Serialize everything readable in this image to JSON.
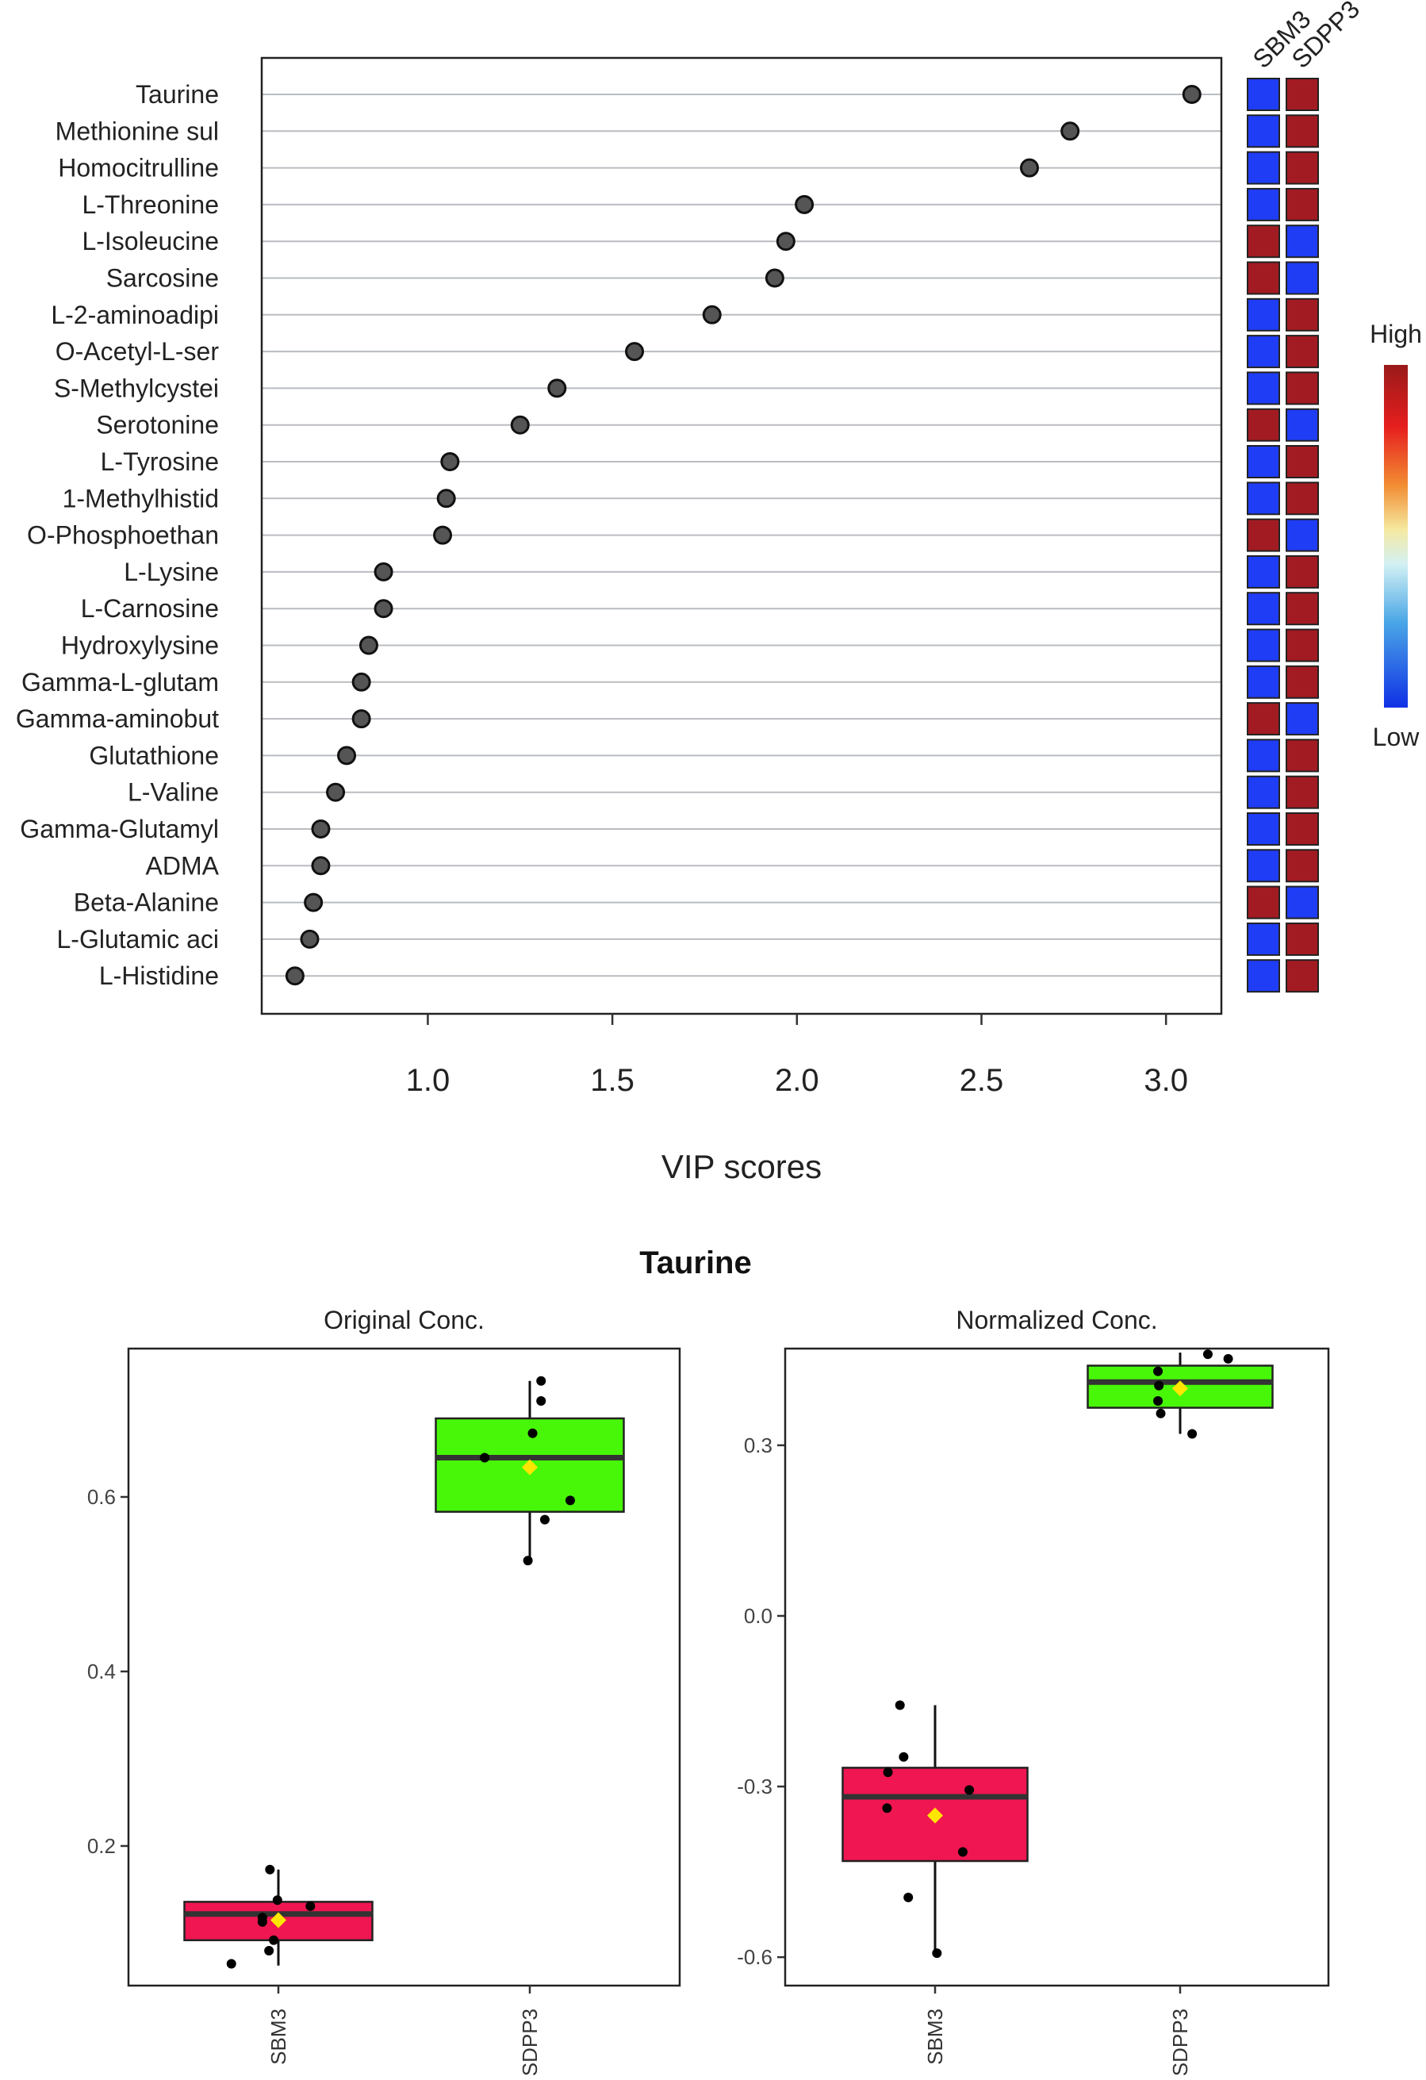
{
  "colors": {
    "high": "#a31b22",
    "low": "#1f3df5",
    "box_SBM3": "#ef1651",
    "box_SDPP3": "#48f708",
    "mean_marker": "#ffe600",
    "point": "#555555"
  },
  "chart_data": [
    {
      "type": "scatter",
      "subtype": "vip-dot-plot",
      "xlabel": "VIP scores",
      "xlim": [
        0.55,
        3.15
      ],
      "xticks": [
        1.0,
        1.5,
        2.0,
        2.5,
        3.0
      ],
      "xtick_labels": [
        "1.0",
        "1.5",
        "2.0",
        "2.5",
        "3.0"
      ],
      "categories": [
        "Taurine",
        "Methionine sul",
        "Homocitrulline",
        "L-Threonine",
        "L-Isoleucine",
        "Sarcosine",
        "L-2-aminoadipi",
        "O-Acetyl-L-ser",
        "S-Methylcystei",
        "Serotonine",
        "L-Tyrosine",
        "1-Methylhistid",
        "O-Phosphoethan",
        "L-Lysine",
        "L-Carnosine",
        "Hydroxylysine",
        "Gamma-L-glutam",
        "Gamma-aminobut",
        "Glutathione",
        "L-Valine",
        "Gamma-Glutamyl",
        "ADMA",
        "Beta-Alanine",
        "L-Glutamic aci",
        "L-Histidine"
      ],
      "values": [
        3.07,
        2.74,
        2.63,
        2.02,
        1.97,
        1.94,
        1.77,
        1.56,
        1.35,
        1.25,
        1.06,
        1.05,
        1.04,
        0.88,
        0.88,
        0.84,
        0.82,
        0.82,
        0.78,
        0.75,
        0.71,
        0.71,
        0.69,
        0.68,
        0.64
      ],
      "heatmap": {
        "columns": [
          "SBM3",
          "SDPP3"
        ],
        "levels": [
          [
            "low",
            "high"
          ],
          [
            "low",
            "high"
          ],
          [
            "low",
            "high"
          ],
          [
            "low",
            "high"
          ],
          [
            "high",
            "low"
          ],
          [
            "high",
            "low"
          ],
          [
            "low",
            "high"
          ],
          [
            "low",
            "high"
          ],
          [
            "low",
            "high"
          ],
          [
            "high",
            "low"
          ],
          [
            "low",
            "high"
          ],
          [
            "low",
            "high"
          ],
          [
            "high",
            "low"
          ],
          [
            "low",
            "high"
          ],
          [
            "low",
            "high"
          ],
          [
            "low",
            "high"
          ],
          [
            "low",
            "high"
          ],
          [
            "high",
            "low"
          ],
          [
            "low",
            "high"
          ],
          [
            "low",
            "high"
          ],
          [
            "low",
            "high"
          ],
          [
            "low",
            "high"
          ],
          [
            "high",
            "low"
          ],
          [
            "low",
            "high"
          ],
          [
            "low",
            "high"
          ]
        ]
      },
      "legend": {
        "high_label": "High",
        "low_label": "Low",
        "position": "right"
      }
    },
    {
      "type": "box",
      "suptitle": "Taurine",
      "title": "Original Conc.",
      "categories": [
        "SBM3",
        "SDPP3"
      ],
      "ylim": [
        0.04,
        0.77
      ],
      "yticks": [
        0.2,
        0.4,
        0.6
      ],
      "ytick_labels": [
        "0.2",
        "0.4",
        "0.6"
      ],
      "boxes": [
        {
          "q1": 0.092,
          "median": 0.122,
          "q3": 0.136,
          "whisker_low": 0.063,
          "whisker_high": 0.173,
          "mean": 0.115
        },
        {
          "q1": 0.583,
          "median": 0.645,
          "q3": 0.69,
          "whisker_low": 0.527,
          "whisker_high": 0.733,
          "mean": 0.634
        }
      ],
      "points": [
        {
          "cat": 0,
          "y": 0.065,
          "jitter": -0.5
        },
        {
          "cat": 0,
          "y": 0.08,
          "jitter": -0.1
        },
        {
          "cat": 0,
          "y": 0.092,
          "jitter": -0.05
        },
        {
          "cat": 0,
          "y": 0.113,
          "jitter": -0.17
        },
        {
          "cat": 0,
          "y": 0.118,
          "jitter": -0.17
        },
        {
          "cat": 0,
          "y": 0.138,
          "jitter": -0.01
        },
        {
          "cat": 0,
          "y": 0.131,
          "jitter": 0.34
        },
        {
          "cat": 0,
          "y": 0.173,
          "jitter": -0.09
        },
        {
          "cat": 1,
          "y": 0.527,
          "jitter": -0.02
        },
        {
          "cat": 1,
          "y": 0.574,
          "jitter": 0.16
        },
        {
          "cat": 1,
          "y": 0.596,
          "jitter": 0.43
        },
        {
          "cat": 1,
          "y": 0.645,
          "jitter": -0.48
        },
        {
          "cat": 1,
          "y": 0.673,
          "jitter": 0.03
        },
        {
          "cat": 1,
          "y": 0.71,
          "jitter": 0.12
        },
        {
          "cat": 1,
          "y": 0.733,
          "jitter": 0.12
        }
      ]
    },
    {
      "type": "box",
      "title": "Normalized Conc.",
      "categories": [
        "SBM3",
        "SDPP3"
      ],
      "ylim": [
        -0.65,
        0.47
      ],
      "yticks": [
        -0.6,
        -0.3,
        0.0,
        0.3
      ],
      "ytick_labels": [
        "-0.6",
        "-0.3",
        "0.0",
        "0.3"
      ],
      "boxes": [
        {
          "q1": -0.431,
          "median": -0.318,
          "q3": -0.267,
          "whisker_low": -0.593,
          "whisker_high": -0.157,
          "mean": -0.351
        },
        {
          "q1": 0.366,
          "median": 0.411,
          "q3": 0.44,
          "whisker_low": 0.32,
          "whisker_high": 0.463,
          "mean": 0.4
        }
      ],
      "points": [
        {
          "cat": 0,
          "y": -0.157,
          "jitter": -0.38
        },
        {
          "cat": 0,
          "y": -0.248,
          "jitter": -0.34
        },
        {
          "cat": 0,
          "y": -0.275,
          "jitter": -0.51
        },
        {
          "cat": 0,
          "y": -0.306,
          "jitter": 0.37
        },
        {
          "cat": 0,
          "y": -0.338,
          "jitter": -0.52
        },
        {
          "cat": 0,
          "y": -0.415,
          "jitter": 0.3
        },
        {
          "cat": 0,
          "y": -0.495,
          "jitter": -0.29
        },
        {
          "cat": 0,
          "y": -0.593,
          "jitter": 0.02
        },
        {
          "cat": 1,
          "y": 0.32,
          "jitter": 0.13
        },
        {
          "cat": 1,
          "y": 0.356,
          "jitter": -0.21
        },
        {
          "cat": 1,
          "y": 0.378,
          "jitter": -0.24
        },
        {
          "cat": 1,
          "y": 0.405,
          "jitter": -0.23
        },
        {
          "cat": 1,
          "y": 0.43,
          "jitter": -0.24
        },
        {
          "cat": 1,
          "y": 0.46,
          "jitter": 0.3
        },
        {
          "cat": 1,
          "y": 0.452,
          "jitter": 0.52
        }
      ]
    }
  ]
}
